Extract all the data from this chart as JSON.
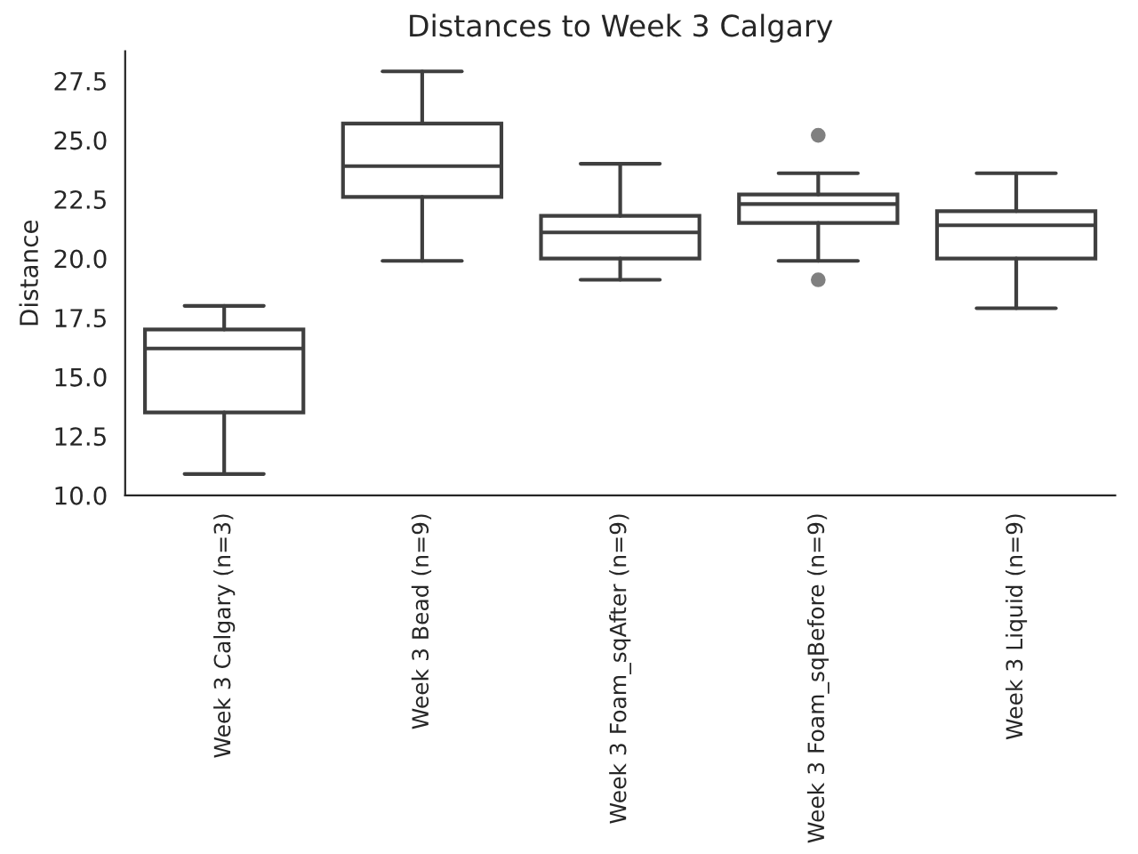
{
  "chart_data": {
    "type": "box",
    "title": "Distances to Week 3 Calgary",
    "ylabel": "Distance",
    "categories": [
      "Week 3 Calgary (n=3)",
      "Week 3 Bead (n=9)",
      "Week 3 Foam_sqAfter (n=9)",
      "Week 3 Foam_sqBefore (n=9)",
      "Week 3 Liquid (n=9)"
    ],
    "boxes": [
      {
        "low": 10.9,
        "q1": 13.5,
        "median": 16.2,
        "q3": 17.0,
        "high": 18.0
      },
      {
        "low": 19.9,
        "q1": 22.6,
        "median": 23.9,
        "q3": 25.7,
        "high": 27.9
      },
      {
        "low": 19.1,
        "q1": 20.0,
        "median": 21.1,
        "q3": 21.8,
        "high": 24.0
      },
      {
        "low": 19.9,
        "q1": 21.5,
        "median": 22.3,
        "q3": 22.7,
        "high": 23.6,
        "outliers": [
          25.2,
          19.1
        ]
      },
      {
        "low": 17.9,
        "q1": 20.0,
        "median": 21.4,
        "q3": 22.0,
        "high": 23.6
      }
    ],
    "color": "#3f3f3f",
    "ylim": [
      10,
      28.75
    ],
    "yticks": [
      {
        "value": 10,
        "label": "10.0"
      },
      {
        "value": 12.5,
        "label": "12.5"
      },
      {
        "value": 15,
        "label": "15.0"
      },
      {
        "value": 17.5,
        "label": "17.5"
      },
      {
        "value": 20,
        "label": "20.0"
      },
      {
        "value": 22.5,
        "label": "22.5"
      },
      {
        "value": 25,
        "label": "25.0"
      },
      {
        "value": 27.5,
        "label": "27.5"
      }
    ],
    "grid": false
  }
}
